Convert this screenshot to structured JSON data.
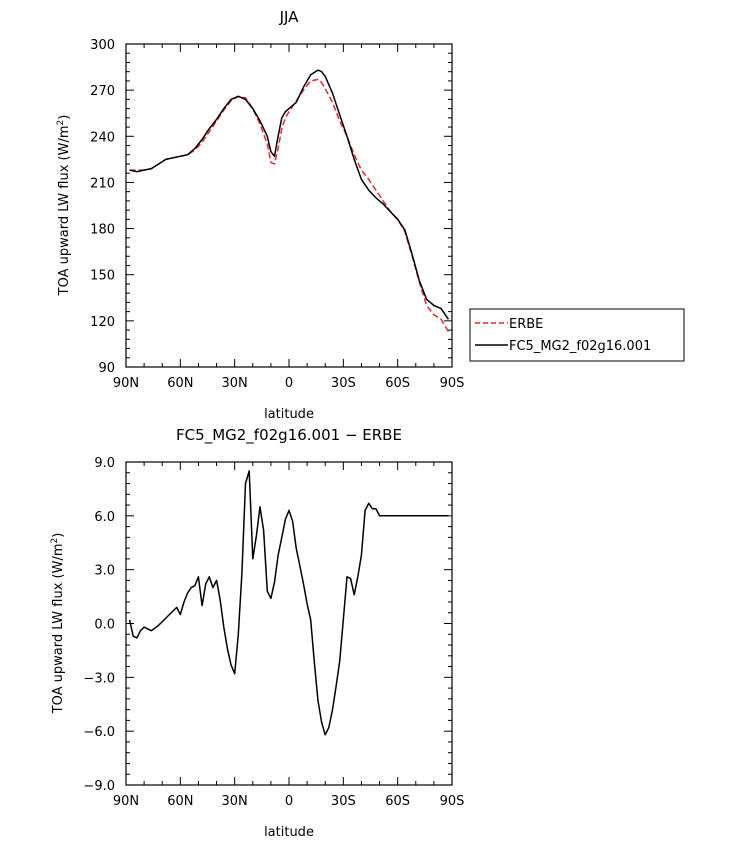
{
  "chart_data": [
    {
      "type": "line",
      "title": "JJA",
      "xlabel": "latitude",
      "ylabel_main": "TOA upward LW flux (W/m",
      "ylabel_sup": "2",
      "ylabel_end": ")",
      "xlim": [
        -90,
        90
      ],
      "ylim": [
        90,
        300
      ],
      "xticks": [
        -90,
        -60,
        -30,
        0,
        30,
        60,
        90
      ],
      "xtick_labels": [
        "90N",
        "60N",
        "30N",
        "0",
        "30S",
        "60S",
        "90S"
      ],
      "yticks": [
        90,
        120,
        150,
        180,
        210,
        240,
        270,
        300
      ],
      "ytick_labels": [
        "90",
        "120",
        "150",
        "180",
        "210",
        "240",
        "270",
        "300"
      ],
      "legend_position": "right",
      "series": [
        {
          "name": "ERBE",
          "color": "#e8262a",
          "dash": "dashed",
          "x": [
            -88,
            -84,
            -80,
            -76,
            -72,
            -68,
            -64,
            -60,
            -56,
            -52,
            -48,
            -44,
            -40,
            -36,
            -32,
            -28,
            -24,
            -20,
            -16,
            -12,
            -10,
            -8,
            -6,
            -4,
            -2,
            0,
            4,
            8,
            12,
            16,
            18,
            20,
            24,
            28,
            32,
            36,
            40,
            44,
            48,
            52,
            56,
            60,
            64,
            68,
            72,
            76,
            80,
            84,
            88
          ],
          "y": [
            218,
            218,
            218,
            219,
            222,
            225,
            226,
            227,
            228,
            231,
            236,
            243,
            250,
            257,
            263,
            266,
            265,
            258,
            248,
            235,
            223,
            222,
            232,
            245,
            252,
            256,
            263,
            270,
            276,
            277,
            275,
            271,
            262,
            250,
            240,
            228,
            218,
            212,
            205,
            198,
            191,
            186,
            178,
            162,
            145,
            130,
            124,
            121,
            113
          ]
        },
        {
          "name": "FC5_MG2_f02g16.001",
          "color": "#000000",
          "dash": "solid",
          "x": [
            -88,
            -84,
            -80,
            -76,
            -72,
            -68,
            -64,
            -60,
            -56,
            -52,
            -48,
            -44,
            -40,
            -36,
            -32,
            -28,
            -24,
            -20,
            -16,
            -12,
            -10,
            -8,
            -6,
            -4,
            -2,
            0,
            4,
            8,
            12,
            16,
            18,
            20,
            24,
            28,
            32,
            36,
            40,
            44,
            48,
            52,
            56,
            60,
            64,
            68,
            72,
            76,
            80,
            84,
            88
          ],
          "y": [
            218,
            217,
            218,
            219,
            222,
            225,
            226,
            227,
            228,
            232,
            238,
            245,
            251,
            258,
            264,
            266,
            264,
            258,
            250,
            240,
            230,
            227,
            240,
            252,
            256,
            258,
            262,
            272,
            280,
            283,
            282,
            279,
            268,
            254,
            240,
            225,
            212,
            205,
            200,
            196,
            191,
            186,
            179,
            163,
            146,
            134,
            130,
            128,
            121
          ]
        }
      ]
    },
    {
      "type": "line",
      "title": "FC5_MG2_f02g16.001 − ERBE",
      "xlabel": "latitude",
      "ylabel_main": "TOA upward LW flux (W/m",
      "ylabel_sup": "2",
      "ylabel_end": ")",
      "xlim": [
        -90,
        90
      ],
      "ylim": [
        -9,
        9
      ],
      "xticks": [
        -90,
        -60,
        -30,
        0,
        30,
        60,
        90
      ],
      "xtick_labels": [
        "90N",
        "60N",
        "30N",
        "0",
        "30S",
        "60S",
        "90S"
      ],
      "yticks": [
        -9,
        -6,
        -3,
        0,
        3,
        6,
        9
      ],
      "ytick_labels": [
        "−9.0",
        "−6.0",
        "−3.0",
        "0.0",
        "3.0",
        "6.0",
        "9.0"
      ],
      "series": [
        {
          "color": "#000000",
          "dash": "solid",
          "x": [
            -88,
            -86,
            -84,
            -82,
            -80,
            -78,
            -76,
            -72,
            -68,
            -64,
            -62,
            -60,
            -58,
            -56,
            -54,
            -52,
            -50,
            -48,
            -46,
            -44,
            -42,
            -40,
            -38,
            -36,
            -34,
            -32,
            -30,
            -28,
            -26,
            -24,
            -22,
            -20,
            -18,
            -16,
            -14,
            -12,
            -10,
            -8,
            -6,
            -4,
            -2,
            0,
            2,
            4,
            6,
            8,
            10,
            12,
            14,
            16,
            18,
            20,
            22,
            24,
            26,
            28,
            30,
            32,
            34,
            36,
            38,
            40,
            42,
            44,
            46,
            48,
            50,
            52,
            54,
            56,
            58,
            60,
            62,
            64,
            66,
            68,
            70,
            72,
            74,
            76,
            78,
            80,
            82,
            84,
            86,
            88
          ],
          "y": [
            0.2,
            -0.7,
            -0.8,
            -0.4,
            -0.2,
            -0.3,
            -0.4,
            -0.1,
            0.3,
            0.7,
            0.9,
            0.5,
            1.2,
            1.7,
            2.0,
            2.1,
            2.6,
            1.0,
            2.2,
            2.6,
            2.0,
            2.4,
            1.3,
            -0.2,
            -1.4,
            -2.3,
            -2.8,
            -0.6,
            2.8,
            7.8,
            8.5,
            3.6,
            4.9,
            6.5,
            5.2,
            1.8,
            1.4,
            2.3,
            3.8,
            4.8,
            5.8,
            6.3,
            5.7,
            4.2,
            3.2,
            2.2,
            1.1,
            0.2,
            -2.2,
            -4.3,
            -5.5,
            -6.2,
            -5.8,
            -4.8,
            -3.5,
            -2.1,
            0.2,
            2.6,
            2.5,
            1.6,
            2.6,
            3.8,
            6.3,
            6.7,
            6.4,
            6.4,
            6.0,
            6.0,
            6.0,
            6.0,
            6.0,
            6.0,
            6.0,
            6.0,
            6.0,
            6.0,
            6.0,
            6.0,
            6.0,
            6.0,
            6.0,
            6.0,
            6.0,
            6.0,
            6.0,
            6.0
          ]
        }
      ]
    }
  ]
}
